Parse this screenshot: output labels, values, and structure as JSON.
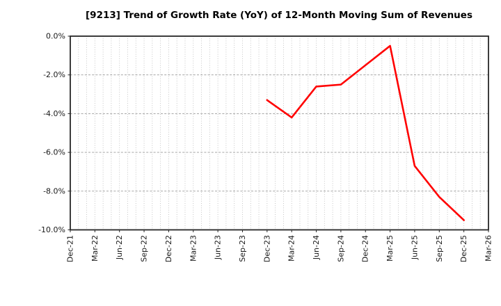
{
  "chart_data": {
    "type": "line",
    "title": "[9213]  Trend of Growth Rate (YoY) of 12-Month Moving Sum of Revenues",
    "stock_code": "9213",
    "unit": "%",
    "xlabel": "",
    "ylabel": "",
    "ylim": [
      -10,
      0
    ],
    "y_tick_interval": 2,
    "y_tick_labels": [
      "0.0%",
      "-2.0%",
      "-4.0%",
      "-6.0%",
      "-8.0%",
      "-10.0%"
    ],
    "x_tick_labels": [
      "Dec-21",
      "Mar-22",
      "Jun-22",
      "Sep-22",
      "Dec-22",
      "Mar-23",
      "Jun-23",
      "Sep-23",
      "Dec-23",
      "Mar-24",
      "Jun-24",
      "Sep-24",
      "Dec-24",
      "Mar-25",
      "Jun-25",
      "Sep-25",
      "Dec-25",
      "Mar-26"
    ],
    "x_minor_grid": "monthly",
    "grid": true,
    "legend": false,
    "series": [
      {
        "name": "Growth Rate (YoY) of 12-Month Moving Sum of Revenues",
        "color": "#ff0000",
        "points": [
          {
            "x": "Dec-23",
            "y": -3.3
          },
          {
            "x": "Mar-24",
            "y": -4.2
          },
          {
            "x": "Jun-24",
            "y": -2.6
          },
          {
            "x": "Sep-24",
            "y": -2.5
          },
          {
            "x": "Dec-24",
            "y": -1.5
          },
          {
            "x": "Mar-25",
            "y": -0.5
          },
          {
            "x": "Jun-25",
            "y": -6.7
          },
          {
            "x": "Sep-25",
            "y": -8.3
          },
          {
            "x": "Dec-25",
            "y": -9.5
          }
        ]
      }
    ],
    "colors": {
      "line": "#ff0000",
      "plot_border": "#262626",
      "minor_grid": "#b8b8b8",
      "major_grid": "#999999",
      "text": "#1a1a1a",
      "background": "#ffffff"
    }
  }
}
